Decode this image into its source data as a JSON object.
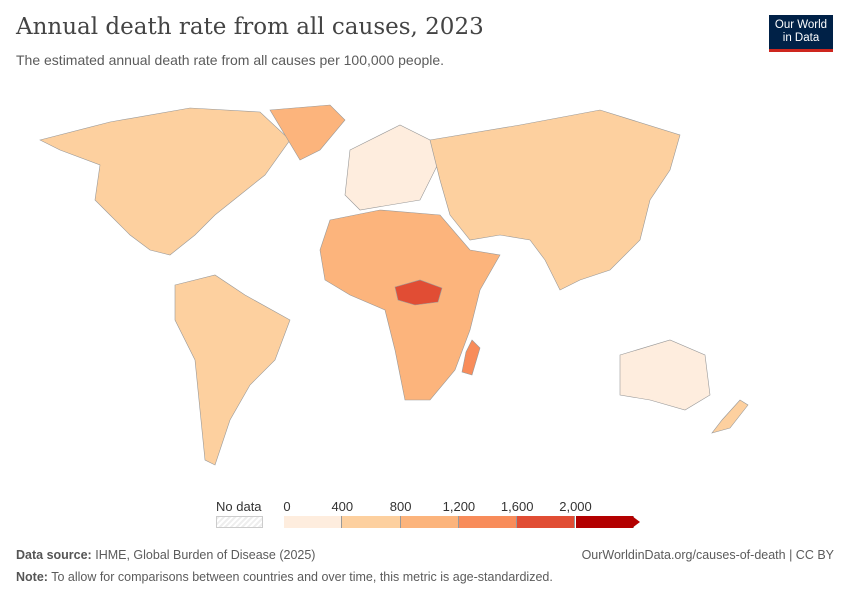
{
  "header": {
    "title": "Annual death rate from all causes, 2023",
    "subtitle": "The estimated annual death rate from all causes per 100,000 people.",
    "logo": "Our World in Data"
  },
  "legend": {
    "no_data_label": "No data",
    "ticks": [
      "0",
      "400",
      "800",
      "1,200",
      "1,600",
      "2,000"
    ],
    "colors": [
      "#feedde",
      "#fdd09f",
      "#fcb47c",
      "#f88c5a",
      "#e14d34",
      "#b30000"
    ],
    "no_data_color": "#eeeeee"
  },
  "map": {
    "year": 2023,
    "regions": [
      {
        "name": "North America",
        "bin": 1
      },
      {
        "name": "Greenland",
        "bin": 2
      },
      {
        "name": "South America",
        "bin": 1
      },
      {
        "name": "Europe",
        "bin": 0
      },
      {
        "name": "Africa",
        "bin": 2
      },
      {
        "name": "Central Africa",
        "bin": 4
      },
      {
        "name": "Madagascar",
        "bin": 3
      },
      {
        "name": "Asia",
        "bin": 1
      },
      {
        "name": "Australia",
        "bin": 0
      },
      {
        "name": "New Zealand",
        "bin": 1
      }
    ]
  },
  "footer": {
    "source_label": "Data source:",
    "source": "IHME, Global Burden of Disease (2025)",
    "url": "OurWorldinData.org/causes-of-death | CC BY",
    "note_label": "Note:",
    "note": "To allow for comparisons between countries and over time, this metric is age-standardized."
  }
}
